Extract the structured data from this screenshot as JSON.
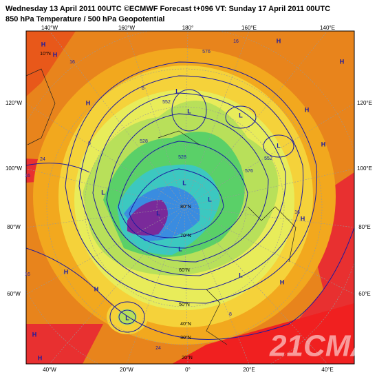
{
  "header": {
    "title": "Wednesday 13 April 2011 00UTC ©ECMWF Forecast t+096 VT: Sunday 17 April 2011 00UTC",
    "subtitle": "850 hPa Temperature / 500 hPa Geopotential"
  },
  "longitude_labels": {
    "top": [
      "140°W",
      "160°W",
      "180°",
      "160°E",
      "140°E"
    ],
    "bottom": [
      "40°W",
      "20°W",
      "0°",
      "20°E",
      "40°E"
    ],
    "left": [
      "120°W",
      "100°W",
      "80°W",
      "60°W"
    ],
    "right": [
      "120°E",
      "100°E",
      "80°E",
      "60°E"
    ]
  },
  "latitude_labels": [
    "80°N",
    "70°N",
    "60°N",
    "50°N",
    "40°N",
    "30°N",
    "20°N",
    "10°N"
  ],
  "pressure_centers": [
    "H",
    "H",
    "H",
    "L",
    "L",
    "L",
    "H",
    "L",
    "L",
    "H",
    "H",
    "L",
    "H",
    "L",
    "L",
    "H",
    "H",
    "H",
    "L",
    "H",
    "H",
    "L",
    "H",
    "L"
  ],
  "contour_labels": [
    "576",
    "552",
    "528",
    "528",
    "552",
    "576",
    "16",
    "16",
    "24",
    "16",
    "16",
    "16",
    "8",
    "8",
    "24",
    "8"
  ],
  "watermark": "21CMA"
}
